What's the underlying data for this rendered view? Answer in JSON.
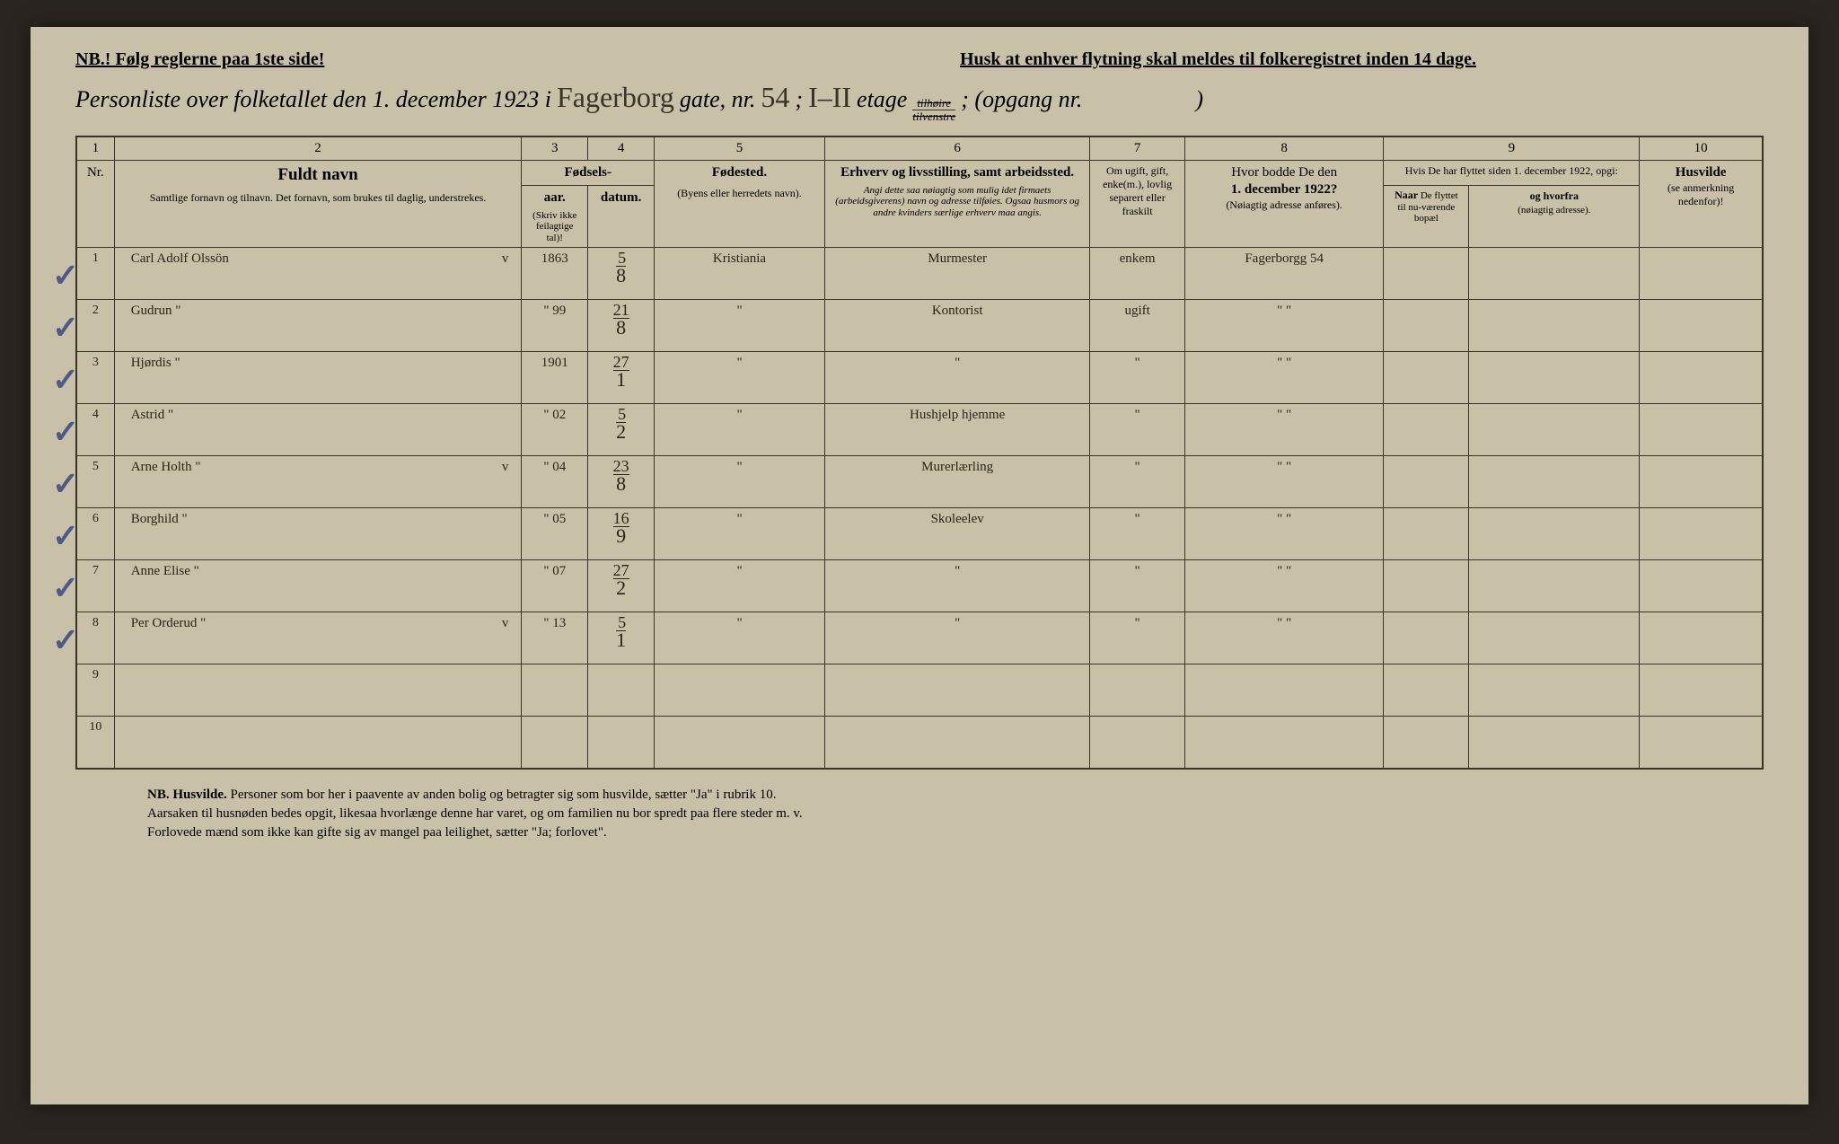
{
  "header": {
    "nb_left": "NB.! Følg reglerne paa 1ste side!",
    "husk": "Husk at enhver flytning skal meldes til folkeregistret inden 14 dage.",
    "title_prefix": "Personliste over folketallet den 1. december 1923 i",
    "street_hand": "Fagerborg",
    "gate_label": "gate, nr.",
    "gate_nr": "54",
    "etage_prefix": ";",
    "etage_hand": "I–II",
    "etage_label": "etage",
    "frac_top": "tilhøire",
    "frac_bot": "tilvenstre",
    "opgang": "; (opgang nr.",
    "opgang_end": ")"
  },
  "colnums": [
    "1",
    "2",
    "3",
    "4",
    "5",
    "6",
    "7",
    "8",
    "9",
    "",
    "10"
  ],
  "columns": {
    "nr": "Nr.",
    "name_title": "Fuldt navn",
    "name_sub": "Samtlige fornavn og tilnavn. Det fornavn, som brukes til daglig, understrekes.",
    "fodsels": "Fødsels-",
    "aar": "aar.",
    "datum": "datum.",
    "aar_sub": "(Skriv ikke feilagtige tal)!",
    "fodested": "Fødested.",
    "fodested_sub": "(Byens eller herredets navn).",
    "erhverv": "Erhverv og livsstilling, samt arbeidssted.",
    "erhverv_sub": "Angi dette saa nøiagtig som mulig idet firmaets (arbeidsgiverens) navn og adresse tilføies. Ogsaa husmors og andre kvinders særlige erhverv maa angis.",
    "gift": "Om ugift, gift, enke(m.), lovlig separert eller fraskilt",
    "adr": "Hvor bodde De den",
    "adr_date": "1. december 1922?",
    "adr_sub": "(Nøiagtig adresse anføres).",
    "col9": "Hvis De har flyttet siden 1. december 1922, opgi:",
    "naar": "Naar De flyttet til nu-værende bopæl",
    "hvorfra": "og hvorfra (nøiagtig adresse).",
    "husvilde": "Husvilde",
    "husvilde_sub": "(se anmerkning nedenfor)!"
  },
  "rows": [
    {
      "nr": "1",
      "check": true,
      "name": "Carl Adolf Olssön",
      "v": "v",
      "aar": "1863",
      "datum_top": "5",
      "datum_bot": "8",
      "fodested": "Kristiania",
      "erhverv": "Murmester",
      "gift": "enkem",
      "adr": "Fagerborgg 54"
    },
    {
      "nr": "2",
      "check": true,
      "name": "Gudrun      \"",
      "v": "",
      "aar": "\" 99",
      "datum_top": "21",
      "datum_bot": "8",
      "fodested": "\"",
      "erhverv": "Kontorist",
      "gift": "ugift",
      "adr": "\"     \""
    },
    {
      "nr": "3",
      "check": true,
      "name": "Hjørdis      \"",
      "v": "",
      "aar": "1901",
      "datum_top": "27",
      "datum_bot": "1",
      "fodested": "\"",
      "erhverv": "\"",
      "gift": "\"",
      "adr": "\"     \""
    },
    {
      "nr": "4",
      "check": true,
      "name": "Astrid      \"",
      "v": "",
      "aar": "\" 02",
      "datum_top": "5",
      "datum_bot": "2",
      "fodested": "\"",
      "erhverv": "Hushjelp hjemme",
      "gift": "\"",
      "adr": "\"     \""
    },
    {
      "nr": "5",
      "check": true,
      "name": "Arne Holth   \"",
      "v": "v",
      "aar": "\" 04",
      "datum_top": "23",
      "datum_bot": "8",
      "fodested": "\"",
      "erhverv": "Murerlærling",
      "gift": "\"",
      "adr": "\"     \""
    },
    {
      "nr": "6",
      "check": true,
      "name": "Borghild    \"",
      "v": "",
      "aar": "\" 05",
      "datum_top": "16",
      "datum_bot": "9",
      "fodested": "\"",
      "erhverv": "Skoleelev",
      "gift": "\"",
      "adr": "\"     \""
    },
    {
      "nr": "7",
      "check": true,
      "name": "Anne Elise   \"",
      "v": "",
      "aar": "\" 07",
      "datum_top": "27",
      "datum_bot": "2",
      "fodested": "\"",
      "erhverv": "\"",
      "gift": "\"",
      "adr": "\"     \""
    },
    {
      "nr": "8",
      "check": true,
      "name": "Per Orderud  \"",
      "v": "v",
      "aar": "\" 13",
      "datum_top": "5",
      "datum_bot": "1",
      "fodested": "\"",
      "erhverv": "\"",
      "gift": "\"",
      "adr": "\"     \""
    },
    {
      "nr": "9",
      "check": false,
      "name": "",
      "v": "",
      "aar": "",
      "datum_top": "",
      "datum_bot": "",
      "fodested": "",
      "erhverv": "",
      "gift": "",
      "adr": ""
    },
    {
      "nr": "10",
      "check": false,
      "name": "",
      "v": "",
      "aar": "",
      "datum_top": "",
      "datum_bot": "",
      "fodested": "",
      "erhverv": "",
      "gift": "",
      "adr": ""
    }
  ],
  "footer": {
    "nb": "NB. Husvilde.",
    "line1": "Personer som bor her i paavente av anden bolig og betragter sig som husvilde, sætter \"Ja\" i rubrik 10.",
    "line2": "Aarsaken til husnøden bedes opgit, likesaa hvorlænge denne har varet, og om familien nu bor spredt paa flere steder m. v.",
    "line3": "Forlovede mænd som ikke kan gifte sig av mangel paa leilighet, sætter \"Ja; forlovet\"."
  },
  "colors": {
    "paper": "#c9c0a8",
    "ink": "#3a3428",
    "check": "#4a5b8a",
    "bg": "#2a2520"
  }
}
